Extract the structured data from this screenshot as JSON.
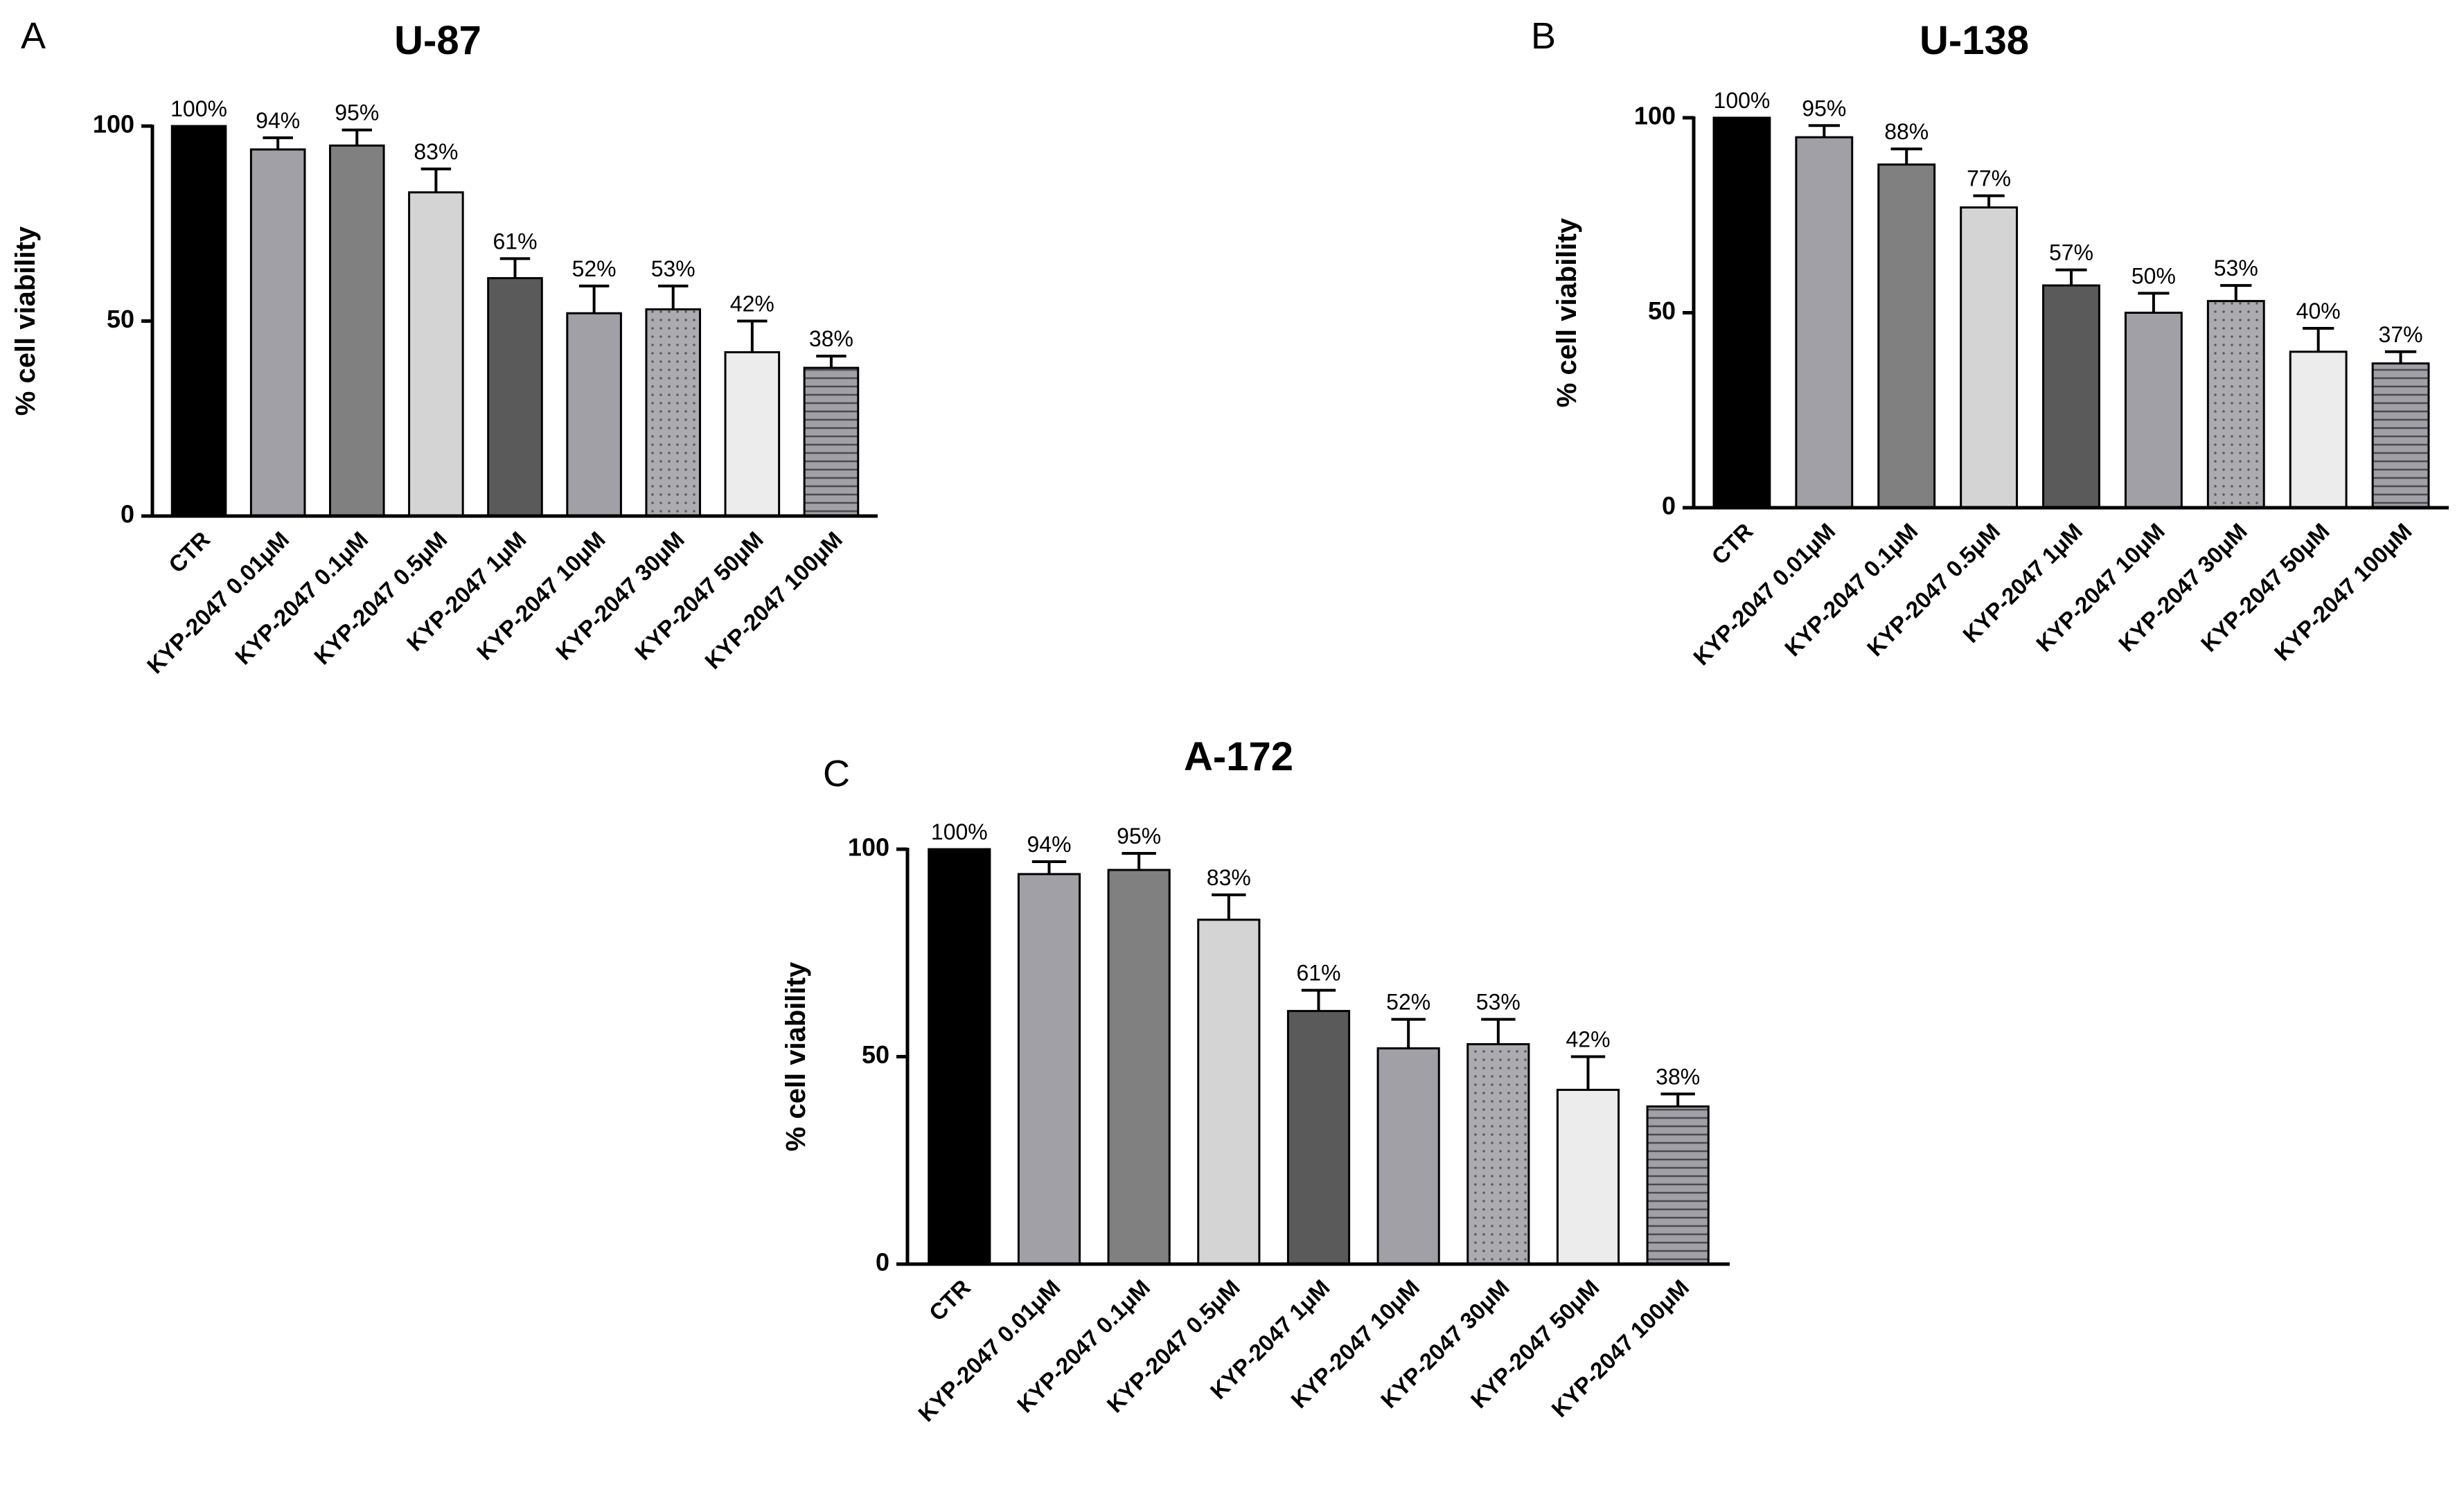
{
  "chart_data": [
    {
      "type": "bar",
      "panel": "A",
      "title": "U-87",
      "ylabel": "% cell viability",
      "categories": [
        "CTR",
        "KYP-2047 0.01μM",
        "KYP-2047 0.1μM",
        "KYP-2047 0.5μM",
        "KYP-2047 1μM",
        "KYP-2047 10μM",
        "KYP-2047 30μM",
        "KYP-2047 50μM",
        "KYP-2047 100μM"
      ],
      "values": [
        100,
        94,
        95,
        83,
        61,
        52,
        53,
        42,
        38
      ],
      "value_labels": [
        "100%",
        "94%",
        "95%",
        "83%",
        "61%",
        "52%",
        "53%",
        "42%",
        "38%"
      ],
      "errors": [
        null,
        3,
        4,
        6,
        5,
        7,
        6,
        8,
        3
      ],
      "colors": [
        "#000000",
        "#a0a0a6",
        "#808080",
        "#d4d4d4",
        "#5a5a5a",
        "#a0a0a6",
        "#ababb0",
        "#ececec",
        "#a0a0a6"
      ],
      "patterns": [
        "solid",
        "solid",
        "solid",
        "solid",
        "solid",
        "solid",
        "dots",
        "solid",
        "hlines"
      ],
      "ylim": [
        0,
        100
      ],
      "yticks": [
        0,
        50,
        100
      ]
    },
    {
      "type": "bar",
      "panel": "B",
      "title": "U-138",
      "ylabel": "% cell viability",
      "categories": [
        "CTR",
        "KYP-2047 0.01μM",
        "KYP-2047 0.1μM",
        "KYP-2047 0.5μM",
        "KYP-2047 1μM",
        "KYP-2047 10μM",
        "KYP-2047 30μM",
        "KYP-2047 50μM",
        "KYP-2047 100μM"
      ],
      "values": [
        100,
        95,
        88,
        77,
        57,
        50,
        53,
        40,
        37
      ],
      "value_labels": [
        "100%",
        "95%",
        "88%",
        "77%",
        "57%",
        "50%",
        "53%",
        "40%",
        "37%"
      ],
      "errors": [
        null,
        3,
        4,
        3,
        4,
        5,
        4,
        6,
        3
      ],
      "colors": [
        "#000000",
        "#a0a0a6",
        "#808080",
        "#d4d4d4",
        "#5a5a5a",
        "#a0a0a6",
        "#ababb0",
        "#ececec",
        "#a0a0a6"
      ],
      "patterns": [
        "solid",
        "solid",
        "solid",
        "solid",
        "solid",
        "solid",
        "dots",
        "solid",
        "hlines"
      ],
      "ylim": [
        0,
        100
      ],
      "yticks": [
        0,
        50,
        100
      ]
    },
    {
      "type": "bar",
      "panel": "C",
      "title": "A-172",
      "ylabel": "% cell viability",
      "categories": [
        "CTR",
        "KYP-2047 0.01μM",
        "KYP-2047 0.1μM",
        "KYP-2047 0.5μM",
        "KYP-2047 1μM",
        "KYP-2047 10μM",
        "KYP-2047 30μM",
        "KYP-2047 50μM",
        "KYP-2047 100μM"
      ],
      "values": [
        100,
        94,
        95,
        83,
        61,
        52,
        53,
        42,
        38
      ],
      "value_labels": [
        "100%",
        "94%",
        "95%",
        "83%",
        "61%",
        "52%",
        "53%",
        "42%",
        "38%"
      ],
      "errors": [
        null,
        3,
        4,
        6,
        5,
        7,
        6,
        8,
        3
      ],
      "colors": [
        "#000000",
        "#a0a0a6",
        "#808080",
        "#d4d4d4",
        "#5a5a5a",
        "#a0a0a6",
        "#ababb0",
        "#ececec",
        "#a0a0a6"
      ],
      "patterns": [
        "solid",
        "solid",
        "solid",
        "solid",
        "solid",
        "solid",
        "dots",
        "solid",
        "hlines"
      ],
      "ylim": [
        0,
        100
      ],
      "yticks": [
        0,
        50,
        100
      ]
    }
  ]
}
